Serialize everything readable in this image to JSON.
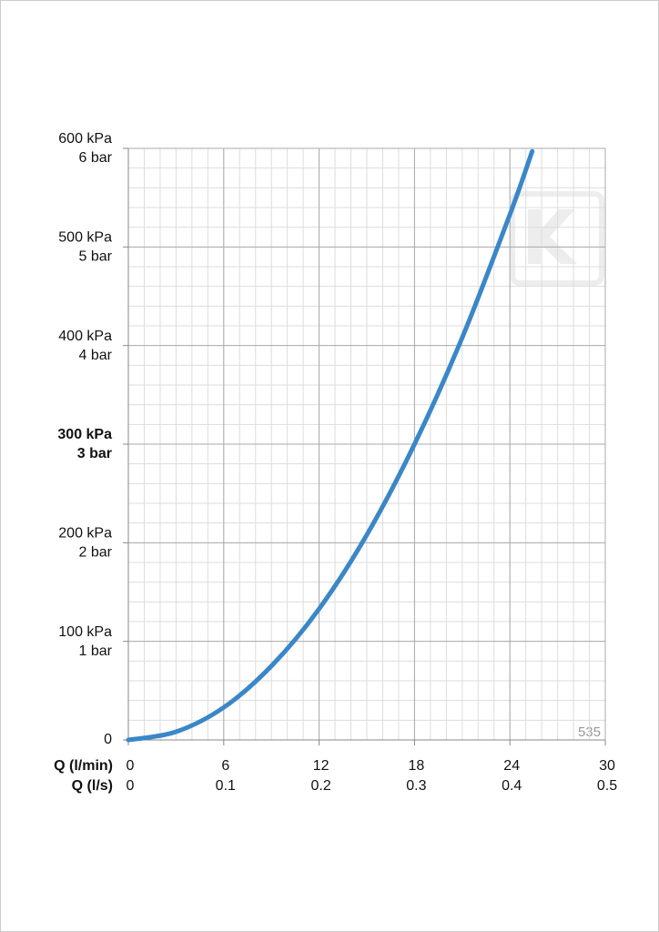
{
  "chart_data": {
    "type": "line",
    "x": [
      0,
      3,
      6,
      9,
      12,
      15,
      18,
      21,
      24,
      25.4
    ],
    "series": [
      {
        "color": "#3a87c8",
        "values": [
          0,
          8.3,
          33,
          75,
          133,
          208,
          300,
          408,
          533,
          597
        ]
      }
    ],
    "xlim": [
      0,
      30
    ],
    "xticks": [
      0,
      6,
      12,
      18,
      24,
      30
    ],
    "x2lim": [
      0,
      0.5
    ],
    "x2ticks": [
      0,
      0.1,
      0.2,
      0.3,
      0.4,
      0.5
    ],
    "xlabel": "Q (l/min)",
    "x2label": "Q (l/s)",
    "ylim": [
      0,
      600
    ],
    "yticks": [
      0,
      {
        "value": 100,
        "label": "100 kPa"
      },
      {
        "value": 200,
        "label": "200 kPa"
      },
      {
        "value": 300,
        "label": "300 kPa"
      },
      {
        "value": 400,
        "label": "400 kPa"
      },
      {
        "value": 500,
        "label": "500 kPa"
      },
      {
        "value": 600,
        "label": "600 kPa"
      }
    ],
    "y2lim": [
      0,
      6
    ],
    "y2ticks": [
      {
        "value": 1,
        "label": "1 bar"
      },
      {
        "value": 2,
        "label": "2 bar"
      },
      {
        "value": 3,
        "label": "3 bar"
      },
      {
        "value": 4,
        "label": "4 bar"
      },
      {
        "value": 5,
        "label": "5 bar"
      },
      {
        "value": 6,
        "label": "6 bar"
      }
    ],
    "highlight_ytick": 300,
    "minor_xstep": 1,
    "minor_ystep": 20,
    "grid": true,
    "annotation": "535"
  }
}
